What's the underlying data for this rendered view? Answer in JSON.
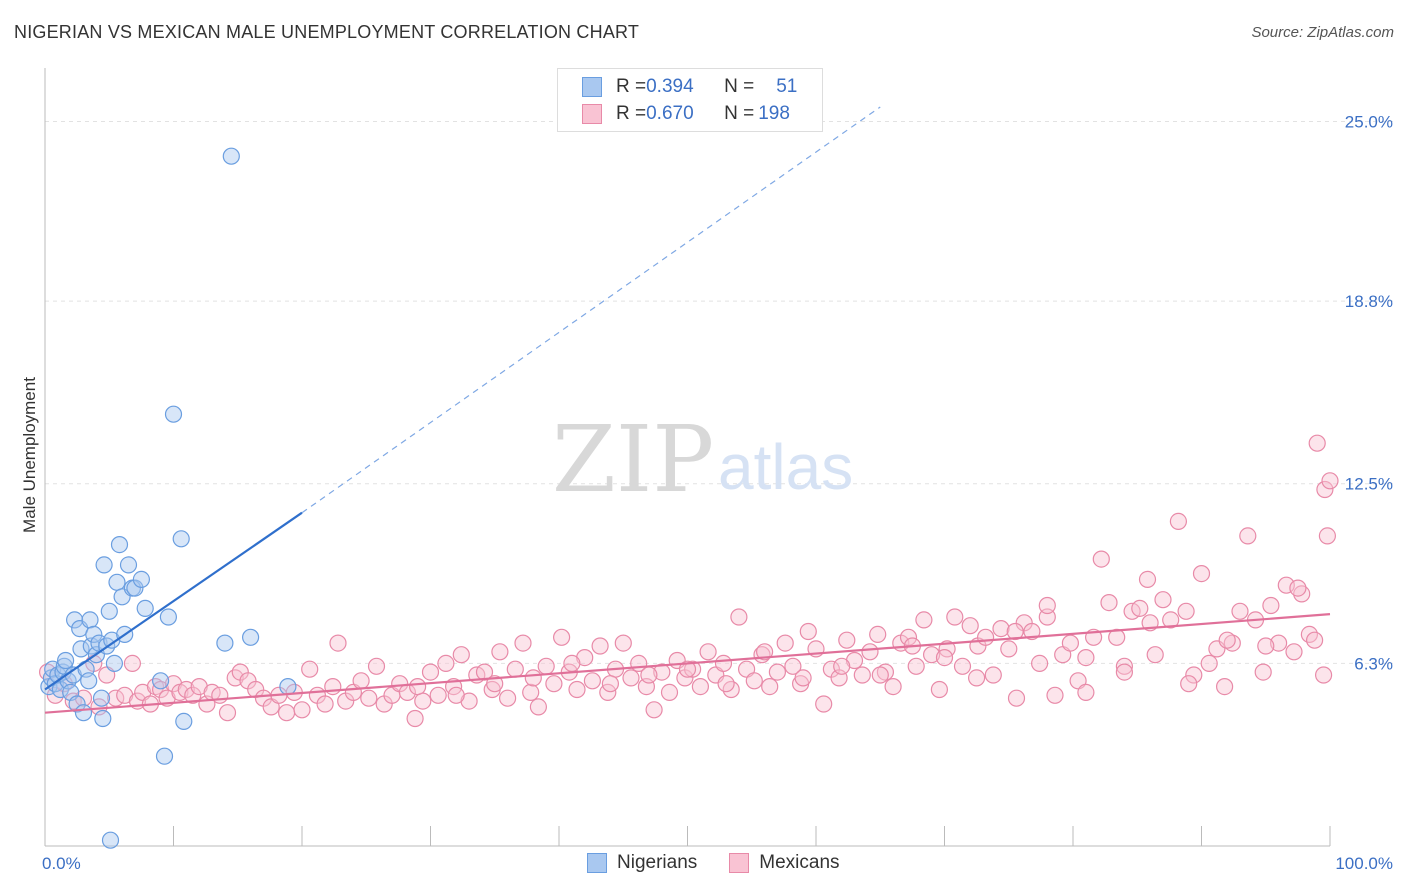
{
  "header": {
    "title": "NIGERIAN VS MEXICAN MALE UNEMPLOYMENT CORRELATION CHART",
    "source": "Source: ZipAtlas.com"
  },
  "watermark": {
    "zip": "ZIP",
    "atlas": "atlas"
  },
  "legend": {
    "rows": [
      {
        "r_label": "R = ",
        "r_value": "0.394",
        "n_label": "N = ",
        "n_value": "51",
        "color": "#a9c8f0",
        "border": "#6a9ee0"
      },
      {
        "r_label": "R = ",
        "r_value": "0.670",
        "n_label": "N = ",
        "n_value": "198",
        "color": "#f9c3d3",
        "border": "#e88aa8"
      }
    ]
  },
  "bottom_legend": {
    "items": [
      {
        "label": "Nigerians",
        "color": "#a9c8f0",
        "border": "#6a9ee0"
      },
      {
        "label": "Mexicans",
        "color": "#f9c3d3",
        "border": "#e88aa8"
      }
    ]
  },
  "chart_data": {
    "type": "scatter",
    "ylabel": "Male Unemployment",
    "xlim": [
      0,
      100
    ],
    "ylim": [
      0,
      26.5
    ],
    "x_tick_labels": [
      {
        "value": 0,
        "label": "0.0%"
      },
      {
        "value": 100,
        "label": "100.0%"
      }
    ],
    "y_tick_labels": [
      {
        "value": 6.3,
        "label": "6.3%"
      },
      {
        "value": 12.5,
        "label": "12.5%"
      },
      {
        "value": 18.8,
        "label": "18.8%"
      },
      {
        "value": 25.0,
        "label": "25.0%"
      }
    ],
    "series": [
      {
        "name": "Nigerians",
        "color": "#a9c8f0",
        "stroke": "#6a9ee0",
        "trend_color": "#2f6fcc",
        "trend": {
          "x0": 0,
          "y0": 5.4,
          "x1_solid": 20,
          "y1_solid": 11.5,
          "x1_dash": 65,
          "y1_dash": 25.5
        },
        "points": [
          [
            0.3,
            5.5
          ],
          [
            0.5,
            5.8
          ],
          [
            0.6,
            6.1
          ],
          [
            0.8,
            5.6
          ],
          [
            1.0,
            5.9
          ],
          [
            1.2,
            5.4
          ],
          [
            1.4,
            6.0
          ],
          [
            1.5,
            6.2
          ],
          [
            1.6,
            6.4
          ],
          [
            1.8,
            5.7
          ],
          [
            2.0,
            5.3
          ],
          [
            2.2,
            5.9
          ],
          [
            2.3,
            7.8
          ],
          [
            2.5,
            4.9
          ],
          [
            2.7,
            7.5
          ],
          [
            2.8,
            6.8
          ],
          [
            3.0,
            4.6
          ],
          [
            3.2,
            6.1
          ],
          [
            3.4,
            5.7
          ],
          [
            3.5,
            7.8
          ],
          [
            3.6,
            6.9
          ],
          [
            3.8,
            7.3
          ],
          [
            4.0,
            6.6
          ],
          [
            4.2,
            7.0
          ],
          [
            4.4,
            5.1
          ],
          [
            4.5,
            4.4
          ],
          [
            4.6,
            9.7
          ],
          [
            4.8,
            6.9
          ],
          [
            5.0,
            8.1
          ],
          [
            5.2,
            7.1
          ],
          [
            5.4,
            6.3
          ],
          [
            5.6,
            9.1
          ],
          [
            5.8,
            10.4
          ],
          [
            6.0,
            8.6
          ],
          [
            6.2,
            7.3
          ],
          [
            6.5,
            9.7
          ],
          [
            6.8,
            8.9
          ],
          [
            7.0,
            8.9
          ],
          [
            7.5,
            9.2
          ],
          [
            7.8,
            8.2
          ],
          [
            9.0,
            5.7
          ],
          [
            9.3,
            3.1
          ],
          [
            9.6,
            7.9
          ],
          [
            10.0,
            14.9
          ],
          [
            10.6,
            10.6
          ],
          [
            10.8,
            4.3
          ],
          [
            14.0,
            7.0
          ],
          [
            14.5,
            23.8
          ],
          [
            16.0,
            7.2
          ],
          [
            18.9,
            5.5
          ],
          [
            5.1,
            0.2
          ]
        ]
      },
      {
        "name": "Mexicans",
        "color": "#f9c3d3",
        "stroke": "#e88aa8",
        "trend_color": "#e07099",
        "trend": {
          "x0": 0,
          "y0": 4.6,
          "x1": 100,
          "y1": 8.0
        },
        "points": [
          [
            0.2,
            6.0
          ],
          [
            0.8,
            5.2
          ],
          [
            1.5,
            5.6
          ],
          [
            2.2,
            5.0
          ],
          [
            3.0,
            5.1
          ],
          [
            3.8,
            6.3
          ],
          [
            4.2,
            4.8
          ],
          [
            4.8,
            5.9
          ],
          [
            5.5,
            5.1
          ],
          [
            6.2,
            5.2
          ],
          [
            6.8,
            6.3
          ],
          [
            7.2,
            5.0
          ],
          [
            7.6,
            5.3
          ],
          [
            8.2,
            4.9
          ],
          [
            8.6,
            5.5
          ],
          [
            9.0,
            5.4
          ],
          [
            9.5,
            5.1
          ],
          [
            10.0,
            5.6
          ],
          [
            10.5,
            5.3
          ],
          [
            11.0,
            5.4
          ],
          [
            11.5,
            5.2
          ],
          [
            12.0,
            5.5
          ],
          [
            12.6,
            4.9
          ],
          [
            13.0,
            5.3
          ],
          [
            13.6,
            5.2
          ],
          [
            14.2,
            4.6
          ],
          [
            14.8,
            5.8
          ],
          [
            15.2,
            6.0
          ],
          [
            15.8,
            5.7
          ],
          [
            16.4,
            5.4
          ],
          [
            17.0,
            5.1
          ],
          [
            17.6,
            4.8
          ],
          [
            18.2,
            5.2
          ],
          [
            18.8,
            4.6
          ],
          [
            19.4,
            5.3
          ],
          [
            20.0,
            4.7
          ],
          [
            20.6,
            6.1
          ],
          [
            21.2,
            5.2
          ],
          [
            21.8,
            4.9
          ],
          [
            22.4,
            5.5
          ],
          [
            22.8,
            7.0
          ],
          [
            23.4,
            5.0
          ],
          [
            24.0,
            5.3
          ],
          [
            24.6,
            5.7
          ],
          [
            25.2,
            5.1
          ],
          [
            25.8,
            6.2
          ],
          [
            26.4,
            4.9
          ],
          [
            27.0,
            5.2
          ],
          [
            27.6,
            5.6
          ],
          [
            28.2,
            5.3
          ],
          [
            28.8,
            4.4
          ],
          [
            29.4,
            5.0
          ],
          [
            30.0,
            6.0
          ],
          [
            30.6,
            5.2
          ],
          [
            31.2,
            6.3
          ],
          [
            31.8,
            5.5
          ],
          [
            32.4,
            6.6
          ],
          [
            33.0,
            5.0
          ],
          [
            33.6,
            5.9
          ],
          [
            34.2,
            6.0
          ],
          [
            34.8,
            5.4
          ],
          [
            35.4,
            6.7
          ],
          [
            36.0,
            5.1
          ],
          [
            36.6,
            6.1
          ],
          [
            37.2,
            7.0
          ],
          [
            37.8,
            5.3
          ],
          [
            38.4,
            4.8
          ],
          [
            39.0,
            6.2
          ],
          [
            39.6,
            5.6
          ],
          [
            40.2,
            7.2
          ],
          [
            40.8,
            6.0
          ],
          [
            41.4,
            5.4
          ],
          [
            42.0,
            6.5
          ],
          [
            42.6,
            5.7
          ],
          [
            43.2,
            6.9
          ],
          [
            43.8,
            5.3
          ],
          [
            44.4,
            6.1
          ],
          [
            45.0,
            7.0
          ],
          [
            45.6,
            5.8
          ],
          [
            46.2,
            6.3
          ],
          [
            46.8,
            5.5
          ],
          [
            47.4,
            4.7
          ],
          [
            48.0,
            6.0
          ],
          [
            48.6,
            5.3
          ],
          [
            49.2,
            6.4
          ],
          [
            49.8,
            5.8
          ],
          [
            50.4,
            6.1
          ],
          [
            51.0,
            5.5
          ],
          [
            51.6,
            6.7
          ],
          [
            52.2,
            5.9
          ],
          [
            52.8,
            6.3
          ],
          [
            53.4,
            5.4
          ],
          [
            54.0,
            7.9
          ],
          [
            54.6,
            6.1
          ],
          [
            55.2,
            5.7
          ],
          [
            55.8,
            6.6
          ],
          [
            56.4,
            5.5
          ],
          [
            57.0,
            6.0
          ],
          [
            57.6,
            7.0
          ],
          [
            58.2,
            6.2
          ],
          [
            58.8,
            5.6
          ],
          [
            59.4,
            7.4
          ],
          [
            60.0,
            6.8
          ],
          [
            60.6,
            4.9
          ],
          [
            61.2,
            6.1
          ],
          [
            61.8,
            5.8
          ],
          [
            62.4,
            7.1
          ],
          [
            63.0,
            6.4
          ],
          [
            63.6,
            5.9
          ],
          [
            64.2,
            6.7
          ],
          [
            64.8,
            7.3
          ],
          [
            65.4,
            6.0
          ],
          [
            66.0,
            5.5
          ],
          [
            66.6,
            7.0
          ],
          [
            67.2,
            7.2
          ],
          [
            67.8,
            6.2
          ],
          [
            68.4,
            7.8
          ],
          [
            69.0,
            6.6
          ],
          [
            69.6,
            5.4
          ],
          [
            70.2,
            6.8
          ],
          [
            70.8,
            7.9
          ],
          [
            71.4,
            6.2
          ],
          [
            72.0,
            7.6
          ],
          [
            72.6,
            6.9
          ],
          [
            73.2,
            7.2
          ],
          [
            73.8,
            5.9
          ],
          [
            74.4,
            7.5
          ],
          [
            75.0,
            6.8
          ],
          [
            75.6,
            5.1
          ],
          [
            76.2,
            7.7
          ],
          [
            76.8,
            7.4
          ],
          [
            77.4,
            6.3
          ],
          [
            78.0,
            7.9
          ],
          [
            78.6,
            5.2
          ],
          [
            79.2,
            6.6
          ],
          [
            79.8,
            7.0
          ],
          [
            80.4,
            5.7
          ],
          [
            81.0,
            6.5
          ],
          [
            81.6,
            7.2
          ],
          [
            82.2,
            9.9
          ],
          [
            82.8,
            8.4
          ],
          [
            83.4,
            7.2
          ],
          [
            84.0,
            6.2
          ],
          [
            84.6,
            8.1
          ],
          [
            85.2,
            8.2
          ],
          [
            85.8,
            9.2
          ],
          [
            86.4,
            6.6
          ],
          [
            87.0,
            8.5
          ],
          [
            87.6,
            7.8
          ],
          [
            88.2,
            11.2
          ],
          [
            88.8,
            8.1
          ],
          [
            89.4,
            5.9
          ],
          [
            90.0,
            9.4
          ],
          [
            90.6,
            6.3
          ],
          [
            91.2,
            6.8
          ],
          [
            91.8,
            5.5
          ],
          [
            92.4,
            7.0
          ],
          [
            93.0,
            8.1
          ],
          [
            93.6,
            10.7
          ],
          [
            94.2,
            7.8
          ],
          [
            94.8,
            6.0
          ],
          [
            95.4,
            8.3
          ],
          [
            96.0,
            7.0
          ],
          [
            96.6,
            9.0
          ],
          [
            97.2,
            6.7
          ],
          [
            97.8,
            8.7
          ],
          [
            98.4,
            7.3
          ],
          [
            99.0,
            13.9
          ],
          [
            99.6,
            12.3
          ],
          [
            100.0,
            12.6
          ],
          [
            99.8,
            10.7
          ],
          [
            98.8,
            7.1
          ],
          [
            99.5,
            5.9
          ],
          [
            97.5,
            8.9
          ],
          [
            95.0,
            6.9
          ],
          [
            92.0,
            7.1
          ],
          [
            89.0,
            5.6
          ],
          [
            86.0,
            7.7
          ],
          [
            84.0,
            6.0
          ],
          [
            81.0,
            5.3
          ],
          [
            78.0,
            8.3
          ],
          [
            75.5,
            7.4
          ],
          [
            72.5,
            5.8
          ],
          [
            70.0,
            6.5
          ],
          [
            67.5,
            6.9
          ],
          [
            65.0,
            5.9
          ],
          [
            62.0,
            6.2
          ],
          [
            59.0,
            5.8
          ],
          [
            56.0,
            6.7
          ],
          [
            53.0,
            5.6
          ],
          [
            50.0,
            6.1
          ],
          [
            47.0,
            5.9
          ],
          [
            44.0,
            5.6
          ],
          [
            41.0,
            6.3
          ],
          [
            38.0,
            5.8
          ],
          [
            35.0,
            5.6
          ],
          [
            32.0,
            5.2
          ],
          [
            29.0,
            5.5
          ]
        ]
      }
    ]
  }
}
